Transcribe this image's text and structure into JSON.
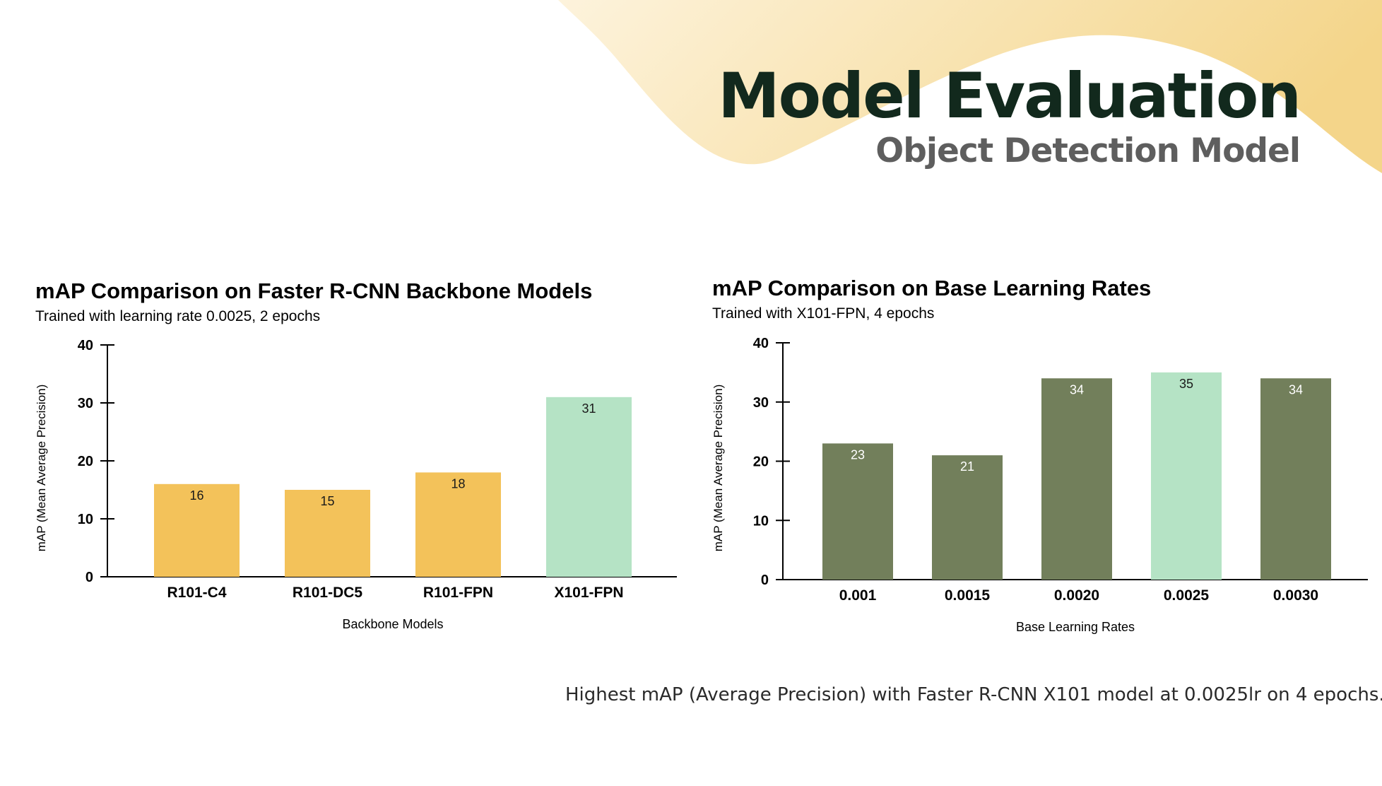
{
  "header": {
    "title": "Model Evaluation",
    "subtitle": "Object Detection Model"
  },
  "theme": {
    "wave_color_light": "#fdf3dc",
    "wave_color_dark": "#f4d58a",
    "title_color": "#12291d"
  },
  "caption": "Highest mAP (Average Precision) with Faster R-CNN X101 model at 0.0025lr on 4 epochs.",
  "chart_data": [
    {
      "type": "bar",
      "title": "mAP Comparison on Faster R-CNN Backbone Models",
      "subtitle": "Trained with learning rate 0.0025, 2 epochs",
      "xlabel": "Backbone Models",
      "ylabel": "mAP (Mean Average Precision)",
      "categories": [
        "R101-C4",
        "R101-DC5",
        "R101-FPN",
        "X101-FPN"
      ],
      "values": [
        16,
        15,
        18,
        31
      ],
      "data_labels": [
        "16",
        "15",
        "18",
        "31"
      ],
      "bar_colors": [
        "#f3c25a",
        "#f3c25a",
        "#f3c25a",
        "#b5e3c5"
      ],
      "label_color": "#1a1a1a",
      "ylim": [
        0,
        40
      ],
      "yticks": [
        0,
        10,
        20,
        30,
        40
      ],
      "grid": false,
      "legend": "none"
    },
    {
      "type": "bar",
      "title": "mAP Comparison on Base Learning Rates",
      "subtitle": "Trained with X101-FPN, 4 epochs",
      "xlabel": "Base Learning Rates",
      "ylabel": "mAP (Mean Average Precision)",
      "categories": [
        "0.001",
        "0.0015",
        "0.0020",
        "0.0025",
        "0.0030"
      ],
      "values": [
        23,
        21,
        34,
        35,
        34
      ],
      "data_labels": [
        "23",
        "21",
        "34",
        "35",
        "34"
      ],
      "bar_colors": [
        "#727f5b",
        "#727f5b",
        "#727f5b",
        "#b5e3c5",
        "#727f5b"
      ],
      "label_colors": [
        "#ffffff",
        "#ffffff",
        "#ffffff",
        "#1a1a1a",
        "#ffffff"
      ],
      "ylim": [
        0,
        40
      ],
      "yticks": [
        0,
        10,
        20,
        30,
        40
      ],
      "grid": false,
      "legend": "none"
    }
  ]
}
